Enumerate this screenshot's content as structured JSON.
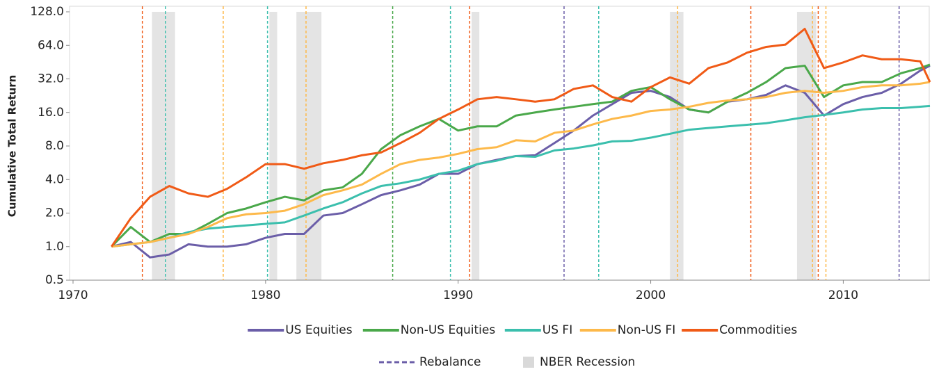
{
  "chart_data": {
    "type": "line",
    "y_label": "Cumulative Total Return",
    "log_scale": true,
    "ylim": [
      0.5,
      128
    ],
    "yticks": [
      {
        "value": 0.5,
        "label": "0.5"
      },
      {
        "value": 1,
        "label": "1.0"
      },
      {
        "value": 2,
        "label": "2.0"
      },
      {
        "value": 4,
        "label": "4.0"
      },
      {
        "value": 8,
        "label": "8.0"
      },
      {
        "value": 16,
        "label": "16.0"
      },
      {
        "value": 32,
        "label": "32.0"
      },
      {
        "value": 64,
        "label": "64.0"
      },
      {
        "value": 128,
        "label": "128.0"
      }
    ],
    "xlim": [
      1970,
      2014.5
    ],
    "xticks": [
      1970,
      1980,
      1990,
      2000,
      2010
    ],
    "x": [
      1972,
      1973,
      1974,
      1975,
      1976,
      1977,
      1978,
      1979,
      1980,
      1981,
      1982,
      1983,
      1984,
      1985,
      1986,
      1987,
      1988,
      1989,
      1990,
      1991,
      1992,
      1993,
      1994,
      1995,
      1996,
      1997,
      1998,
      1999,
      2000,
      2001,
      2002,
      2003,
      2004,
      2005,
      2006,
      2007,
      2008,
      2009,
      2010,
      2011,
      2012,
      2013,
      2014,
      2014.5
    ],
    "series": [
      {
        "name": "US Equities",
        "color": "#6b5ea8",
        "values": [
          1.0,
          1.1,
          0.8,
          0.85,
          1.05,
          1.0,
          1.0,
          1.05,
          1.2,
          1.3,
          1.3,
          1.9,
          2.0,
          2.4,
          2.9,
          3.2,
          3.6,
          4.5,
          4.5,
          5.5,
          6.0,
          6.5,
          6.6,
          8.5,
          11,
          15,
          19,
          24,
          25,
          22,
          17,
          16,
          20,
          21,
          23,
          28,
          24,
          15,
          19,
          22,
          24,
          29,
          38,
          42
        ]
      },
      {
        "name": "Non-US Equities",
        "color": "#4aa84a",
        "values": [
          1.0,
          1.5,
          1.1,
          1.3,
          1.3,
          1.6,
          2.0,
          2.2,
          2.5,
          2.8,
          2.6,
          3.2,
          3.4,
          4.5,
          7.5,
          10,
          12,
          14,
          11,
          12,
          12,
          15,
          16,
          17,
          18,
          19,
          20,
          25,
          27,
          21,
          17,
          16,
          20,
          24,
          30,
          40,
          42,
          22,
          28,
          30,
          30,
          36,
          40,
          43
        ]
      },
      {
        "name": "US FI",
        "color": "#3bbfad",
        "values": [
          1.0,
          1.05,
          1.1,
          1.2,
          1.35,
          1.45,
          1.5,
          1.55,
          1.6,
          1.65,
          1.9,
          2.2,
          2.5,
          3.0,
          3.5,
          3.7,
          4.0,
          4.5,
          4.8,
          5.5,
          5.9,
          6.5,
          6.4,
          7.3,
          7.6,
          8.1,
          8.8,
          8.9,
          9.5,
          10.3,
          11.2,
          11.6,
          12,
          12.4,
          12.8,
          13.6,
          14.5,
          15.2,
          16,
          17,
          17.5,
          17.5,
          18,
          18.3
        ]
      },
      {
        "name": "Non-US FI",
        "color": "#fdb94a",
        "values": [
          1.0,
          1.05,
          1.1,
          1.2,
          1.3,
          1.5,
          1.8,
          1.95,
          2.0,
          2.1,
          2.4,
          2.9,
          3.2,
          3.6,
          4.5,
          5.5,
          6.0,
          6.3,
          6.8,
          7.5,
          7.8,
          9,
          8.8,
          10.5,
          11,
          12.5,
          14,
          15,
          16.5,
          17,
          18,
          19.5,
          20.5,
          21,
          22,
          24,
          25,
          24,
          25,
          27,
          28,
          28,
          29,
          30
        ]
      },
      {
        "name": "Commodities",
        "color": "#f05a16",
        "values": [
          1.0,
          1.8,
          2.8,
          3.5,
          3.0,
          2.8,
          3.3,
          4.2,
          5.5,
          5.5,
          5.0,
          5.6,
          6.0,
          6.6,
          7.0,
          8.5,
          10.5,
          14,
          17,
          21,
          22,
          21,
          20,
          21,
          26,
          28,
          22,
          20,
          27,
          33,
          29,
          40,
          45,
          55,
          62,
          65,
          90,
          40,
          45,
          52,
          48,
          48,
          46,
          30
        ]
      }
    ],
    "rebalance": {
      "name": "Rebalance",
      "color": "#6b5ea8",
      "x": [
        1973.6,
        1974.8,
        1977.8,
        1980.1,
        1982.1,
        1986.6,
        1989.6,
        1990.6,
        1995.5,
        1997.3,
        2001.4,
        2005.2,
        2008.4,
        2008.7,
        2009.1,
        2012.9
      ],
      "colors": [
        "#f05a16",
        "#3bbfad",
        "#fdb94a",
        "#3bbfad",
        "#fdb94a",
        "#4aa84a",
        "#3bbfad",
        "#f05a16",
        "#6b5ea8",
        "#3bbfad",
        "#fdb94a",
        "#f05a16",
        "#fdb94a",
        "#f05a16",
        "#fdb94a",
        "#6b5ea8"
      ]
    },
    "recessions": {
      "name": "NBER Recession",
      "color": "#e4e4e4",
      "start": [
        1974.1,
        1980.2,
        1981.6,
        1990.7,
        2001.0,
        2007.6
      ],
      "end": [
        1975.3,
        1980.6,
        1982.9,
        1991.1,
        2001.7,
        2008.6
      ]
    }
  }
}
